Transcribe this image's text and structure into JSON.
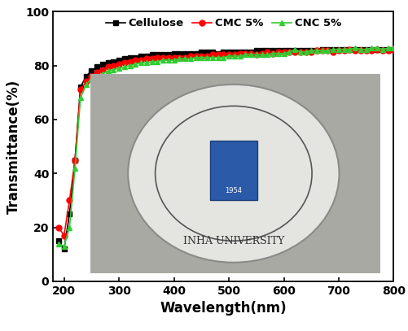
{
  "chart_data": {
    "type": "line",
    "x_label": "Wavelength(nm)",
    "y_label": "Transmittance(%)",
    "x": [
      190,
      200,
      210,
      220,
      230,
      240,
      250,
      260,
      270,
      280,
      290,
      300,
      310,
      320,
      330,
      340,
      350,
      360,
      370,
      380,
      390,
      400,
      410,
      420,
      430,
      440,
      450,
      460,
      470,
      480,
      490,
      500,
      510,
      520,
      530,
      540,
      550,
      560,
      570,
      580,
      590,
      600,
      610,
      620,
      630,
      640,
      650,
      660,
      670,
      680,
      690,
      700,
      710,
      720,
      730,
      740,
      750,
      760,
      770,
      780,
      790,
      800
    ],
    "series": [
      {
        "name": "Cellulose",
        "color": "#000000",
        "marker": "square",
        "line_style": "solid",
        "values": [
          15,
          12,
          25,
          45,
          72,
          76,
          78,
          79.5,
          80.5,
          81,
          81.5,
          82,
          82.5,
          83,
          83,
          83.5,
          83.5,
          84,
          84,
          84,
          84,
          84.5,
          84.5,
          84.5,
          84.5,
          84.5,
          85,
          85,
          85,
          84.5,
          85,
          85,
          85,
          85,
          85,
          85,
          85.5,
          85.5,
          85.5,
          85.5,
          85.5,
          85.5,
          85.5,
          85.5,
          85.5,
          85.5,
          85.5,
          85.5,
          86,
          86,
          86,
          86,
          86,
          86,
          86,
          86,
          86,
          86,
          86,
          86,
          86,
          86
        ]
      },
      {
        "name": "CMC 5%",
        "color": "#ff0000",
        "marker": "circle",
        "line_style": "solid",
        "values": [
          20,
          17,
          30,
          45,
          71,
          74,
          76,
          77.5,
          78.5,
          79.5,
          80,
          80.5,
          81,
          81.5,
          82,
          82,
          82.5,
          82.5,
          83,
          83,
          83,
          83,
          83,
          83,
          83.5,
          83.5,
          83.5,
          83.5,
          84,
          84,
          84,
          84,
          84,
          84.5,
          84.5,
          84.5,
          84,
          84.5,
          85,
          84.5,
          85,
          85,
          85,
          85,
          85,
          85,
          85,
          85.5,
          85.5,
          85.5,
          85,
          85.5,
          85.5,
          86,
          85.5,
          85.5,
          85.5,
          85.5,
          86,
          85.5,
          85.5,
          86
        ]
      },
      {
        "name": "CNC 5%",
        "color": "#33cc33",
        "marker": "triangle",
        "line_style": "solid",
        "values": [
          14,
          13,
          20,
          42,
          68,
          73,
          75,
          76,
          77,
          78,
          78.5,
          79,
          79.5,
          80,
          80.5,
          81,
          81,
          81.5,
          81.5,
          82,
          82,
          82,
          82.5,
          82.5,
          82.5,
          83,
          83,
          83,
          83,
          83,
          83,
          83.5,
          83.5,
          83.5,
          84,
          84,
          84,
          84,
          84,
          84.5,
          84.5,
          84.5,
          85,
          86,
          85,
          85,
          85.5,
          85.5,
          85.5,
          85.5,
          86,
          86,
          86,
          86,
          86.5,
          86,
          86,
          86.5,
          86.5,
          86,
          86.5,
          86.5
        ]
      }
    ],
    "xlim": [
      180,
      800
    ],
    "xticks": [
      200,
      300,
      400,
      500,
      600,
      700,
      800
    ],
    "ylim": [
      0,
      100
    ],
    "yticks": [
      0,
      20,
      40,
      60,
      80,
      100
    ],
    "legend": "upper center",
    "annotations": [
      "1954",
      "INHA UNIVERSITY"
    ]
  }
}
